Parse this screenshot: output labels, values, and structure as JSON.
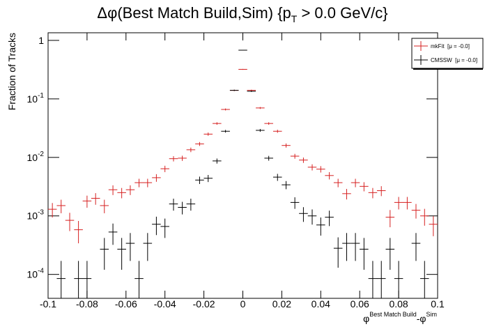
{
  "chart_data": {
    "type": "errorbar",
    "title": [
      "Δφ(Best Match Build,Sim) {p",
      "T",
      " > 0.0 GeV/c}"
    ],
    "x_label": [
      "φ",
      "Best Match Build",
      "-φ",
      "Sim"
    ],
    "y_label": "Fraction of Tracks",
    "log_y": true,
    "xlim": [
      -0.1,
      0.1
    ],
    "xticks": [
      -0.1,
      -0.08,
      -0.06,
      -0.04,
      -0.02,
      0,
      0.02,
      0.04,
      0.06,
      0.08,
      0.1
    ],
    "ylim": [
      3.9e-05,
      1.35
    ],
    "yticks": [
      {
        "value": 0.0001,
        "label": "10",
        "exponent": "-4"
      },
      {
        "value": 0.001,
        "label": "10",
        "exponent": "-3"
      },
      {
        "value": 0.01,
        "label": "10",
        "exponent": "-2"
      },
      {
        "value": 0.1,
        "label": "10",
        "exponent": "-1"
      },
      1
    ],
    "legend": "top-right",
    "x": [
      -0.0978,
      -0.0933,
      -0.0889,
      -0.0844,
      -0.08,
      -0.0756,
      -0.0711,
      -0.0667,
      -0.0622,
      -0.0578,
      -0.0533,
      -0.0489,
      -0.0444,
      -0.04,
      -0.0356,
      -0.0311,
      -0.0267,
      -0.0222,
      -0.0178,
      -0.0133,
      -0.0089,
      -0.0044,
      0,
      0.0044,
      0.0089,
      0.0133,
      0.0178,
      0.0222,
      0.0267,
      0.0311,
      0.0356,
      0.04,
      0.0444,
      0.0489,
      0.0533,
      0.0578,
      0.0622,
      0.0667,
      0.0711,
      0.0756,
      0.08,
      0.0844,
      0.0889,
      0.0933,
      0.0978
    ],
    "series": [
      {
        "name": "mkFit  [μ = -0.0]",
        "color": "#d62020",
        "values": [
          0.0013,
          0.0015,
          0.00084,
          0.00058,
          0.0018,
          0.002,
          0.0015,
          0.0028,
          0.0025,
          0.0028,
          0.0037,
          0.0037,
          0.0045,
          0.0064,
          0.0095,
          0.0097,
          0.0135,
          0.017,
          0.025,
          0.038,
          0.066,
          0.14,
          0.32,
          0.14,
          0.07,
          0.038,
          0.028,
          0.016,
          0.0105,
          0.009,
          0.0068,
          0.0063,
          0.0049,
          0.0037,
          0.0024,
          0.0037,
          0.0032,
          0.0025,
          0.0027,
          0.00095,
          0.0017,
          0.0017,
          0.00125,
          0.001,
          0.00072
        ],
        "errors": [
          0.00036,
          0.00039,
          0.00029,
          0.00024,
          0.00042,
          0.00045,
          0.00039,
          0.00053,
          0.0005,
          0.00053,
          0.00061,
          0.00061,
          0.00067,
          0.0008,
          0.00097,
          0.00098,
          0.0012,
          0.0013,
          0.0016,
          0.0019,
          0.0026,
          0.0037,
          0.0057,
          0.0037,
          0.0026,
          0.0019,
          0.0017,
          0.0013,
          0.001,
          0.00095,
          0.00082,
          0.00079,
          0.0007,
          0.00061,
          0.00049,
          0.00061,
          0.00057,
          0.0005,
          0.00052,
          0.00031,
          0.00041,
          0.00041,
          0.00035,
          0.00032,
          0.00027
        ]
      },
      {
        "name": "CMSSW  [μ = -0.0]",
        "color": "#000000",
        "values": [
          null,
          8.5e-05,
          null,
          8.5e-05,
          8.5e-05,
          null,
          0.00027,
          0.00053,
          0.00027,
          0.00034,
          8.5e-05,
          0.00034,
          0.00072,
          0.00066,
          0.0016,
          0.0014,
          0.0016,
          0.0041,
          0.0044,
          0.0087,
          0.028,
          0.14,
          0.68,
          0.135,
          0.029,
          0.0097,
          0.0046,
          0.0034,
          0.0017,
          0.0011,
          0.001,
          0.0007,
          0.00095,
          0.00028,
          0.00034,
          0.00034,
          0.00027,
          8.5e-05,
          8.5e-05,
          0.00027,
          8.5e-05,
          null,
          0.00034,
          8.5e-05,
          null
        ],
        "errors": [
          null,
          8.5e-05,
          null,
          8.5e-05,
          8.5e-05,
          null,
          0.00015,
          0.00021,
          0.00015,
          0.00017,
          8.5e-05,
          0.00017,
          0.00025,
          0.00024,
          0.00037,
          0.00034,
          0.00037,
          0.00059,
          0.00061,
          0.00086,
          0.0015,
          0.0034,
          0.0076,
          0.0034,
          0.0016,
          0.00091,
          0.00063,
          0.00054,
          0.00038,
          0.00031,
          0.00029,
          0.00024,
          0.00028,
          0.00015,
          0.00017,
          0.00017,
          0.00015,
          8.5e-05,
          8.5e-05,
          0.00015,
          8.5e-05,
          null,
          0.00017,
          8.5e-05,
          null
        ]
      }
    ]
  }
}
